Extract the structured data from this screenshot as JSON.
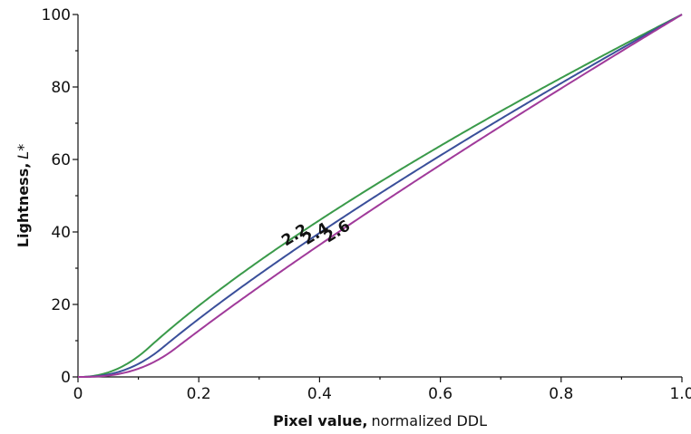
{
  "chart_data": {
    "type": "line",
    "xlabel_bold": "Pixel value,",
    "xlabel_rest": "normalized DDL",
    "ylabel_bold": "Lightness,",
    "ylabel_italic": "L",
    "ylabel_rest": "*",
    "xlim": [
      0,
      1.0
    ],
    "ylim": [
      0,
      100
    ],
    "x_ticks": [
      0,
      0.2,
      0.4,
      0.6,
      0.8,
      1.0
    ],
    "x_tick_labels": [
      "0",
      "0.2",
      "0.4",
      "0.6",
      "0.8",
      "1.0"
    ],
    "y_ticks": [
      0,
      20,
      40,
      60,
      80,
      100
    ],
    "y_tick_labels": [
      "0",
      "20",
      "40",
      "60",
      "80",
      "100"
    ],
    "grid": false,
    "legend": "none",
    "series": [
      {
        "name": "2.2",
        "gamma": 2.2,
        "color": "#3a9a4a"
      },
      {
        "name": "2.4",
        "gamma": 2.4,
        "color": "#3a4f9a"
      },
      {
        "name": "2.6",
        "gamma": 2.6,
        "color": "#a03a9a"
      }
    ],
    "x": [
      0,
      0.02,
      0.04,
      0.06,
      0.08,
      0.1,
      0.12,
      0.14,
      0.16,
      0.18,
      0.2,
      0.25,
      0.3,
      0.35,
      0.4,
      0.45,
      0.5,
      0.55,
      0.6,
      0.65,
      0.7,
      0.75,
      0.8,
      0.85,
      0.9,
      0.95,
      1.0
    ]
  }
}
